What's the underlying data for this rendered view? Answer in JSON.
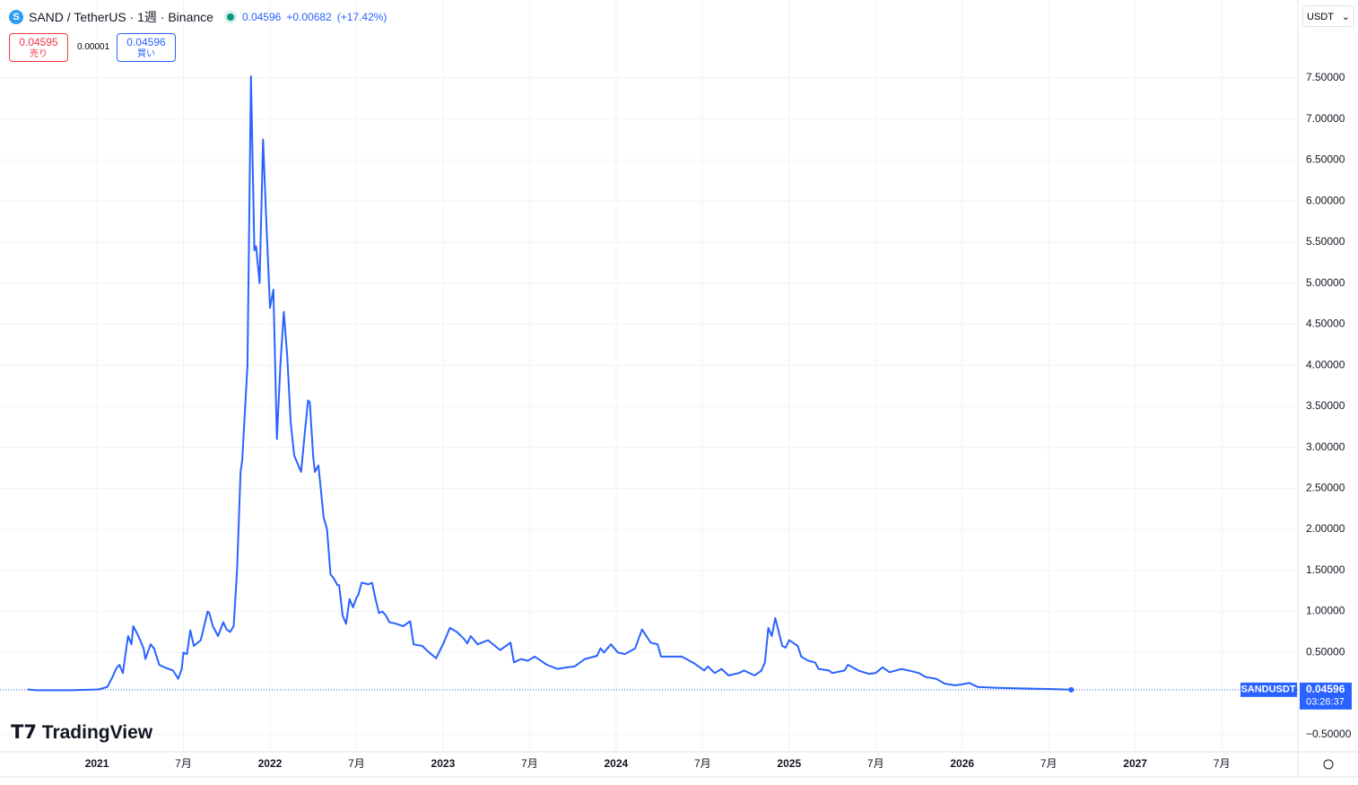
{
  "header": {
    "symbol": "SAND / TetherUS · 1週 · Binance",
    "price": "0.04596",
    "change": "+0.00682",
    "change_pct": "(+17.42%)",
    "sell_price": "0.04595",
    "sell_label": "売り",
    "spread": "0.00001",
    "buy_price": "0.04596",
    "buy_label": "買い",
    "currency": "USDT",
    "logo": "TradingView"
  },
  "price_tag": {
    "symbol": "SANDUSDT",
    "price": "0.04596",
    "countdown": "03:26:37"
  },
  "chart_data": {
    "type": "line",
    "color": "#2962ff",
    "grid": true,
    "x": [
      2020.6,
      2020.65,
      2020.85,
      2021.01,
      2021.06,
      2021.09,
      2021.11,
      2021.13,
      2021.15,
      2021.17,
      2021.18,
      2021.2,
      2021.21,
      2021.24,
      2021.27,
      2021.28,
      2021.31,
      2021.33,
      2021.36,
      2021.39,
      2021.44,
      2021.47,
      2021.49,
      2021.5,
      2021.52,
      2021.54,
      2021.56,
      2021.6,
      2021.64,
      2021.65,
      2021.67,
      2021.7,
      2021.73,
      2021.75,
      2021.77,
      2021.79,
      2021.81,
      2021.83,
      2021.84,
      2021.87,
      2021.89,
      2021.91,
      2021.92,
      2021.94,
      2021.96,
      2021.98,
      2022.0,
      2022.02,
      2022.04,
      2022.06,
      2022.08,
      2022.1,
      2022.12,
      2022.14,
      2022.16,
      2022.18,
      2022.2,
      2022.22,
      2022.23,
      2022.25,
      2022.26,
      2022.28,
      2022.31,
      2022.33,
      2022.35,
      2022.37,
      2022.39,
      2022.4,
      2022.42,
      2022.44,
      2022.46,
      2022.48,
      2022.5,
      2022.51,
      2022.53,
      2022.57,
      2022.59,
      2022.61,
      2022.63,
      2022.65,
      2022.67,
      2022.69,
      2022.73,
      2022.77,
      2022.81,
      2022.83,
      2022.88,
      2022.92,
      2022.96,
      2023.0,
      2023.04,
      2023.08,
      2023.12,
      2023.14,
      2023.16,
      2023.2,
      2023.26,
      2023.33,
      2023.39,
      2023.41,
      2023.45,
      2023.49,
      2023.53,
      2023.6,
      2023.66,
      2023.72,
      2023.76,
      2023.82,
      2023.89,
      2023.91,
      2023.93,
      2023.97,
      2024.01,
      2024.05,
      2024.11,
      2024.15,
      2024.2,
      2024.24,
      2024.26,
      2024.32,
      2024.38,
      2024.45,
      2024.51,
      2024.53,
      2024.57,
      2024.61,
      2024.65,
      2024.71,
      2024.74,
      2024.8,
      2024.84,
      2024.86,
      2024.88,
      2024.9,
      2024.92,
      2024.94,
      2024.96,
      2024.98,
      2025.0,
      2025.05,
      2025.07,
      2025.11,
      2025.15,
      2025.17,
      2025.23,
      2025.25,
      2025.32,
      2025.34,
      2025.4,
      2025.46,
      2025.5,
      2025.54,
      2025.58,
      2025.65,
      2025.71,
      2025.75,
      2025.79,
      2025.85,
      2025.9,
      2025.96,
      2026.02,
      2026.04,
      2026.09,
      2026.19,
      2026.29,
      2026.4,
      2026.5,
      2026.63
    ],
    "values": [
      0.05,
      0.04,
      0.04,
      0.05,
      0.08,
      0.2,
      0.3,
      0.35,
      0.25,
      0.55,
      0.7,
      0.6,
      0.82,
      0.7,
      0.55,
      0.42,
      0.6,
      0.55,
      0.35,
      0.32,
      0.28,
      0.18,
      0.3,
      0.5,
      0.48,
      0.77,
      0.58,
      0.65,
      1.0,
      0.98,
      0.82,
      0.7,
      0.87,
      0.78,
      0.75,
      0.82,
      1.5,
      2.7,
      2.85,
      4.0,
      7.52,
      5.4,
      5.45,
      5.0,
      6.75,
      5.7,
      4.7,
      4.92,
      3.1,
      4.0,
      4.65,
      4.1,
      3.3,
      2.9,
      2.8,
      2.7,
      3.15,
      3.57,
      3.55,
      2.88,
      2.7,
      2.78,
      2.15,
      2.0,
      1.45,
      1.4,
      1.32,
      1.32,
      0.95,
      0.85,
      1.15,
      1.05,
      1.17,
      1.2,
      1.35,
      1.33,
      1.35,
      1.15,
      0.98,
      1.0,
      0.95,
      0.87,
      0.85,
      0.82,
      0.88,
      0.6,
      0.58,
      0.5,
      0.43,
      0.6,
      0.8,
      0.75,
      0.67,
      0.61,
      0.7,
      0.6,
      0.65,
      0.53,
      0.62,
      0.38,
      0.42,
      0.4,
      0.45,
      0.35,
      0.3,
      0.32,
      0.33,
      0.42,
      0.46,
      0.55,
      0.5,
      0.6,
      0.5,
      0.48,
      0.55,
      0.78,
      0.62,
      0.6,
      0.45,
      0.45,
      0.45,
      0.37,
      0.28,
      0.33,
      0.25,
      0.3,
      0.22,
      0.25,
      0.28,
      0.22,
      0.28,
      0.38,
      0.8,
      0.7,
      0.92,
      0.75,
      0.58,
      0.56,
      0.65,
      0.58,
      0.45,
      0.4,
      0.38,
      0.3,
      0.28,
      0.25,
      0.28,
      0.35,
      0.28,
      0.24,
      0.25,
      0.32,
      0.26,
      0.3,
      0.27,
      0.25,
      0.2,
      0.18,
      0.12,
      0.1,
      0.12,
      0.13,
      0.08,
      0.07,
      0.065,
      0.06,
      0.055,
      0.04596
    ],
    "xlim": [
      2020.44,
      2027.94
    ],
    "ylim": [
      -0.71,
      8.45
    ],
    "xticks": [
      2021,
      {
        "value": 2021.5,
        "label": "7月"
      },
      2022,
      {
        "value": 2022.5,
        "label": "7月"
      },
      2023,
      {
        "value": 2023.5,
        "label": "7月"
      },
      2024,
      {
        "value": 2024.5,
        "label": "7月"
      },
      2025,
      {
        "value": 2025.5,
        "label": "7月"
      },
      2026,
      {
        "value": 2026.5,
        "label": "7月"
      },
      2027,
      {
        "value": 2027.5,
        "label": "7月"
      }
    ],
    "yticks": [
      {
        "value": -0.5,
        "label": "−0.50000"
      },
      {
        "value": 0.5,
        "label": "0.50000"
      },
      {
        "value": 1,
        "label": "1.00000"
      },
      {
        "value": 1.5,
        "label": "1.50000"
      },
      {
        "value": 2,
        "label": "2.00000"
      },
      {
        "value": 2.5,
        "label": "2.50000"
      },
      {
        "value": 3,
        "label": "3.00000"
      },
      {
        "value": 3.5,
        "label": "3.50000"
      },
      {
        "value": 4,
        "label": "4.00000"
      },
      {
        "value": 4.5,
        "label": "4.50000"
      },
      {
        "value": 5,
        "label": "5.00000"
      },
      {
        "value": 5.5,
        "label": "5.50000"
      },
      {
        "value": 6,
        "label": "6.00000"
      },
      {
        "value": 6.5,
        "label": "6.50000"
      },
      {
        "value": 7,
        "label": "7.00000"
      },
      {
        "value": 7.5,
        "label": "7.50000"
      }
    ]
  }
}
